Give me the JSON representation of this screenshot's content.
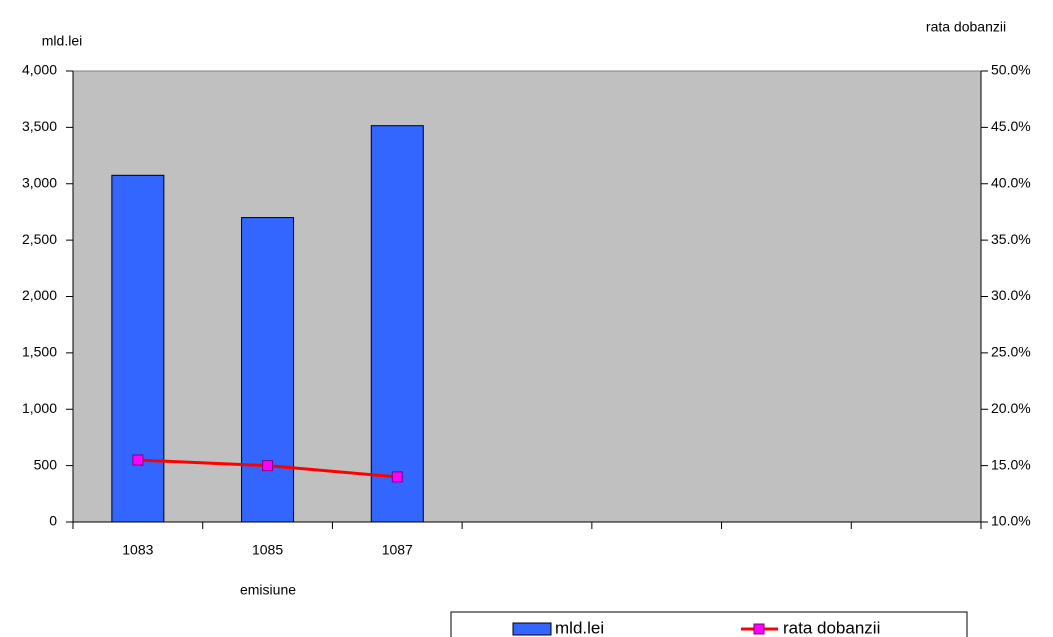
{
  "chart_data": {
    "type": "bar-line",
    "x_label": "emisiune",
    "y_label": "mld.lei",
    "y2_label": "rata dobanzii",
    "categories": [
      "1083",
      "1085",
      "1087",
      null,
      null,
      null,
      null
    ],
    "series": [
      {
        "name": "mld.lei",
        "type": "bar",
        "color": "#3366ff",
        "values": [
          3075,
          2700,
          3515,
          null,
          null,
          null,
          null
        ]
      },
      {
        "name": "rata dobanzii",
        "type": "line",
        "axis": "y2",
        "color": "#ff0000",
        "marker_color": "#ff00ff",
        "values": [
          15.5,
          15.0,
          14.0,
          null,
          null,
          null,
          null
        ]
      }
    ],
    "ylim": [
      0,
      4000
    ],
    "yticks": [
      0,
      500,
      {
        "value": 1000,
        "label": "1,000"
      },
      {
        "value": 1500,
        "label": "1,500"
      },
      {
        "value": 2000,
        "label": "2,000"
      },
      {
        "value": 2500,
        "label": "2,500"
      },
      {
        "value": 3000,
        "label": "3,000"
      },
      {
        "value": 3500,
        "label": "3,500"
      },
      {
        "value": 4000,
        "label": "4,000"
      }
    ],
    "y2lim": [
      10,
      50
    ],
    "y2ticks": [
      {
        "value": 10,
        "label": "10.0%"
      },
      {
        "value": 15,
        "label": "15.0%"
      },
      {
        "value": 20,
        "label": "20.0%"
      },
      {
        "value": 25,
        "label": "25.0%"
      },
      {
        "value": 30,
        "label": "30.0%"
      },
      {
        "value": 35,
        "label": "35.0%"
      },
      {
        "value": 40,
        "label": "40.0%"
      },
      {
        "value": 45,
        "label": "45.0%"
      },
      {
        "value": 50,
        "label": "50.0%"
      }
    ],
    "plot_background": "#c0c0c0",
    "legend": "bottom"
  }
}
